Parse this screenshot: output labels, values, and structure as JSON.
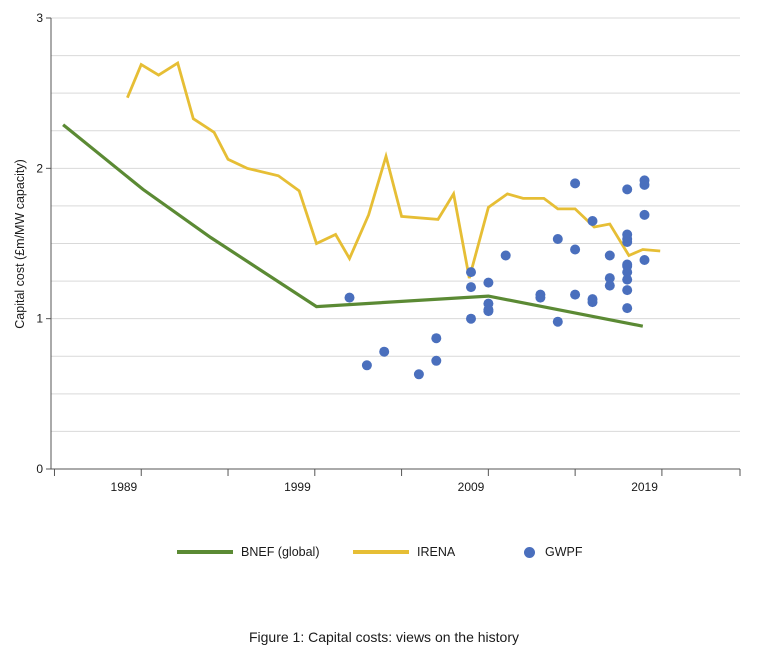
{
  "caption": "Figure 1: Capital costs: views on the history",
  "colors": {
    "bnef": "#5b8a34",
    "irena": "#e6be35",
    "gwpf": "#4a6fbd",
    "grid": "#d9d9d9",
    "axis": "#555555"
  },
  "chart_data": {
    "type": "line",
    "title": "",
    "xlabel": "",
    "ylabel": "Capital cost (£m/MW capacity)",
    "xlim": [
      1984.8,
      2024.5
    ],
    "ylim": [
      0,
      3
    ],
    "x_ticks": [
      1989,
      1999,
      2009,
      2019
    ],
    "x_tick_labels": [
      "1989",
      "1999",
      "2009",
      "2019"
    ],
    "y_ticks": [
      0,
      1,
      2,
      3
    ],
    "y_tick_labels": [
      "0",
      "1",
      "2",
      "3"
    ],
    "grid": true,
    "legend_position": "bottom",
    "series": [
      {
        "name": "BNEF (global)",
        "type": "line",
        "x": [
          1985.5,
          1990.1,
          1994.0,
          2000.1,
          2010.0,
          2018.9
        ],
        "y": [
          2.29,
          1.86,
          1.54,
          1.08,
          1.15,
          0.95
        ]
      },
      {
        "name": "IRENA",
        "type": "line",
        "x": [
          1989.2,
          1990.0,
          1991.0,
          1992.1,
          1993.0,
          1994.2,
          1995.0,
          1996.1,
          1997.9,
          1999.1,
          2000.1,
          2001.2,
          2002.0,
          2003.1,
          2004.1,
          2005.0,
          2007.1,
          2008.0,
          2008.9,
          2010.0,
          2011.1,
          2012.0,
          2013.2,
          2014.0,
          2015.0,
          2016.1,
          2017.0,
          2018.1,
          2018.9,
          2019.9
        ],
        "y": [
          2.47,
          2.69,
          2.62,
          2.7,
          2.33,
          2.24,
          2.06,
          2.0,
          1.95,
          1.85,
          1.5,
          1.56,
          1.4,
          1.69,
          2.08,
          1.68,
          1.66,
          1.83,
          1.27,
          1.74,
          1.83,
          1.8,
          1.8,
          1.73,
          1.73,
          1.61,
          1.63,
          1.42,
          1.46,
          1.45
        ]
      },
      {
        "name": "GWPF",
        "type": "scatter",
        "x": [
          2002.0,
          2003.0,
          2004.0,
          2006.0,
          2007.0,
          2007.0,
          2009.0,
          2009.0,
          2009.0,
          2010.0,
          2010.0,
          2010.0,
          2010.0,
          2011.0,
          2013.0,
          2013.0,
          2014.0,
          2014.0,
          2015.0,
          2015.0,
          2015.0,
          2016.0,
          2016.0,
          2016.0,
          2017.0,
          2017.0,
          2017.0,
          2018.0,
          2018.0,
          2018.0,
          2018.0,
          2018.0,
          2018.0,
          2018.0,
          2018.0,
          2018.0,
          2018.0,
          2019.0,
          2019.0,
          2019.0,
          2019.0
        ],
        "y": [
          1.14,
          0.69,
          0.78,
          0.63,
          0.72,
          0.87,
          1.31,
          1.21,
          1.0,
          1.24,
          1.1,
          1.06,
          1.05,
          1.42,
          1.16,
          1.14,
          1.53,
          0.98,
          1.9,
          1.46,
          1.16,
          1.65,
          1.13,
          1.11,
          1.42,
          1.27,
          1.22,
          1.86,
          1.56,
          1.53,
          1.51,
          1.35,
          1.31,
          1.26,
          1.19,
          1.07,
          1.36,
          1.92,
          1.89,
          1.69,
          1.39
        ]
      }
    ]
  },
  "legend": [
    {
      "label": "BNEF (global)",
      "kind": "line",
      "color": "#5b8a34"
    },
    {
      "label": "IRENA",
      "kind": "line",
      "color": "#e6be35"
    },
    {
      "label": "GWPF",
      "kind": "dot",
      "color": "#4a6fbd"
    }
  ]
}
